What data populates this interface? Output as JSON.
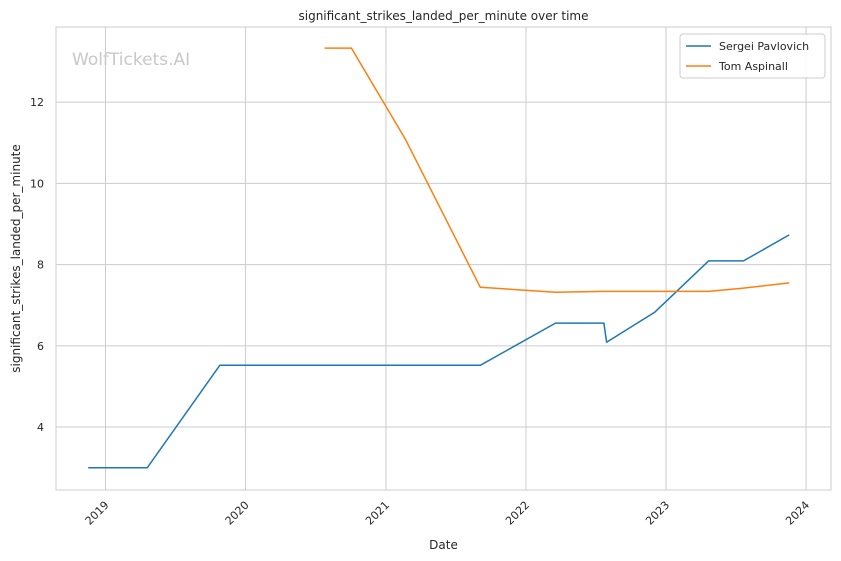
{
  "chart_data": {
    "type": "line",
    "title": "significant_strikes_landed_per_minute over time",
    "xlabel": "Date",
    "ylabel": "significant_strikes_landed_per_minute",
    "watermark": "WolfTickets.AI",
    "xlim": [
      "2018-08-25",
      "2024-03-06"
    ],
    "ylim": [
      2.45,
      13.85
    ],
    "x_ticks": [
      {
        "date": "2019-01-01",
        "label": "2019"
      },
      {
        "date": "2020-01-01",
        "label": "2020"
      },
      {
        "date": "2021-01-01",
        "label": "2021"
      },
      {
        "date": "2022-01-01",
        "label": "2022"
      },
      {
        "date": "2023-01-01",
        "label": "2023"
      },
      {
        "date": "2024-01-01",
        "label": "2024"
      }
    ],
    "y_ticks": [
      {
        "value": 4,
        "label": "4"
      },
      {
        "value": 6,
        "label": "6"
      },
      {
        "value": 8,
        "label": "8"
      },
      {
        "value": 10,
        "label": "10"
      },
      {
        "value": 12,
        "label": "12"
      }
    ],
    "grid": true,
    "legend_position": "top-right",
    "series": [
      {
        "name": "Sergei Pavlovich",
        "color": "#1f77b4",
        "points": [
          {
            "x": "2018-11-17",
            "y": 3.0
          },
          {
            "x": "2019-04-20",
            "y": 3.0
          },
          {
            "x": "2019-10-26",
            "y": 5.52
          },
          {
            "x": "2021-09-04",
            "y": 5.52
          },
          {
            "x": "2022-03-19",
            "y": 6.56
          },
          {
            "x": "2022-07-23",
            "y": 6.56
          },
          {
            "x": "2022-07-30",
            "y": 6.09
          },
          {
            "x": "2022-12-03",
            "y": 6.83
          },
          {
            "x": "2023-04-22",
            "y": 8.09
          },
          {
            "x": "2023-07-22",
            "y": 8.09
          },
          {
            "x": "2023-11-18",
            "y": 8.73
          }
        ]
      },
      {
        "name": "Tom Aspinall",
        "color": "#ff7f0e",
        "points": [
          {
            "x": "2020-07-25",
            "y": 13.33
          },
          {
            "x": "2020-10-03",
            "y": 13.33
          },
          {
            "x": "2021-02-20",
            "y": 11.1
          },
          {
            "x": "2021-09-04",
            "y": 7.44
          },
          {
            "x": "2022-03-19",
            "y": 7.32
          },
          {
            "x": "2022-07-23",
            "y": 7.34
          },
          {
            "x": "2023-04-22",
            "y": 7.34
          },
          {
            "x": "2023-07-22",
            "y": 7.42
          },
          {
            "x": "2023-11-18",
            "y": 7.55
          }
        ]
      }
    ]
  }
}
